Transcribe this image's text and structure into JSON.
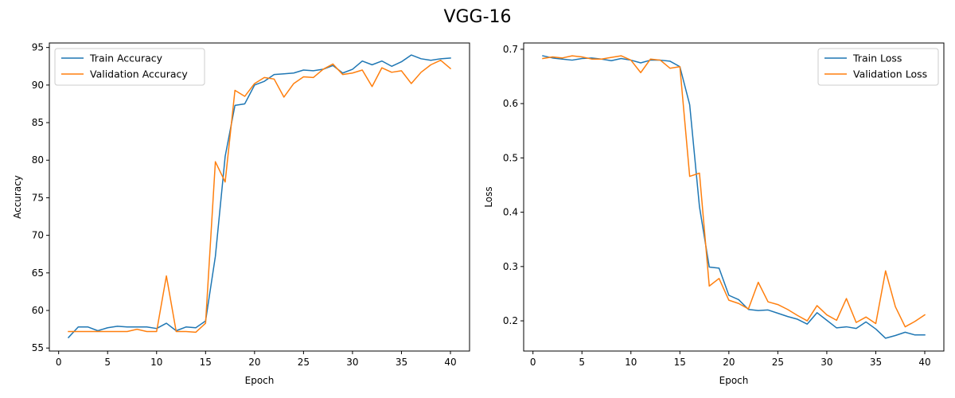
{
  "figure": {
    "title": "VGG-16"
  },
  "colors": {
    "train": "#1f77b4",
    "validation": "#ff7f0e",
    "axes": "#000000"
  },
  "chart_data": [
    {
      "type": "line",
      "xlabel": "Epoch",
      "ylabel": "Accuracy",
      "xlim": [
        -0.95,
        41.95
      ],
      "ylim": [
        54.6,
        95.6
      ],
      "xticks": [
        0,
        5,
        10,
        15,
        20,
        25,
        30,
        35,
        40
      ],
      "yticks": [
        55,
        60,
        65,
        70,
        75,
        80,
        85,
        90,
        95
      ],
      "legend_position": "top-left",
      "x": [
        1,
        2,
        3,
        4,
        5,
        6,
        7,
        8,
        9,
        10,
        11,
        12,
        13,
        14,
        15,
        16,
        17,
        18,
        19,
        20,
        21,
        22,
        23,
        24,
        25,
        26,
        27,
        28,
        29,
        30,
        31,
        32,
        33,
        34,
        35,
        36,
        37,
        38,
        39,
        40
      ],
      "series": [
        {
          "name": "Train Accuracy",
          "color": "#1f77b4",
          "values": [
            56.4,
            57.8,
            57.8,
            57.3,
            57.7,
            57.9,
            57.8,
            57.8,
            57.8,
            57.6,
            58.3,
            57.3,
            57.8,
            57.7,
            58.6,
            67.2,
            80.5,
            87.3,
            87.5,
            90.0,
            90.5,
            91.4,
            91.5,
            91.6,
            92.0,
            91.9,
            92.1,
            92.6,
            91.6,
            92.1,
            93.2,
            92.7,
            93.2,
            92.5,
            93.1,
            94.0,
            93.5,
            93.3,
            93.5,
            93.6
          ]
        },
        {
          "name": "Validation Accuracy",
          "color": "#ff7f0e",
          "values": [
            57.2,
            57.2,
            57.2,
            57.2,
            57.2,
            57.2,
            57.2,
            57.5,
            57.2,
            57.2,
            64.6,
            57.2,
            57.2,
            57.1,
            58.3,
            79.8,
            77.1,
            89.3,
            88.5,
            90.2,
            91.0,
            90.8,
            88.4,
            90.2,
            91.1,
            91.0,
            92.1,
            92.8,
            91.4,
            91.6,
            92.0,
            89.8,
            92.3,
            91.7,
            91.9,
            90.2,
            91.7,
            92.7,
            93.3,
            92.2
          ]
        }
      ]
    },
    {
      "type": "line",
      "xlabel": "Epoch",
      "ylabel": "Loss",
      "xlim": [
        -0.95,
        41.95
      ],
      "ylim": [
        0.1444,
        0.7116
      ],
      "xticks": [
        0,
        5,
        10,
        15,
        20,
        25,
        30,
        35,
        40
      ],
      "yticks": [
        0.2,
        0.3,
        0.4,
        0.5,
        0.6,
        0.7
      ],
      "legend_position": "top-right",
      "x": [
        1,
        2,
        3,
        4,
        5,
        6,
        7,
        8,
        9,
        10,
        11,
        12,
        13,
        14,
        15,
        16,
        17,
        18,
        19,
        20,
        21,
        22,
        23,
        24,
        25,
        26,
        27,
        28,
        29,
        30,
        31,
        32,
        33,
        34,
        35,
        36,
        37,
        38,
        39,
        40
      ],
      "series": [
        {
          "name": "Train Loss",
          "color": "#1f77b4",
          "values": [
            0.688,
            0.684,
            0.682,
            0.68,
            0.683,
            0.684,
            0.682,
            0.679,
            0.683,
            0.68,
            0.675,
            0.68,
            0.68,
            0.678,
            0.668,
            0.598,
            0.41,
            0.299,
            0.297,
            0.247,
            0.239,
            0.221,
            0.219,
            0.22,
            0.214,
            0.208,
            0.203,
            0.194,
            0.215,
            0.201,
            0.187,
            0.189,
            0.186,
            0.198,
            0.185,
            0.168,
            0.173,
            0.179,
            0.174,
            0.174
          ]
        },
        {
          "name": "Validation Loss",
          "color": "#ff7f0e",
          "values": [
            0.683,
            0.686,
            0.684,
            0.688,
            0.686,
            0.682,
            0.682,
            0.685,
            0.688,
            0.68,
            0.657,
            0.682,
            0.68,
            0.665,
            0.668,
            0.466,
            0.472,
            0.264,
            0.278,
            0.238,
            0.232,
            0.222,
            0.271,
            0.235,
            0.23,
            0.221,
            0.21,
            0.2,
            0.228,
            0.211,
            0.201,
            0.241,
            0.197,
            0.207,
            0.195,
            0.292,
            0.226,
            0.189,
            0.199,
            0.211
          ]
        }
      ]
    }
  ]
}
